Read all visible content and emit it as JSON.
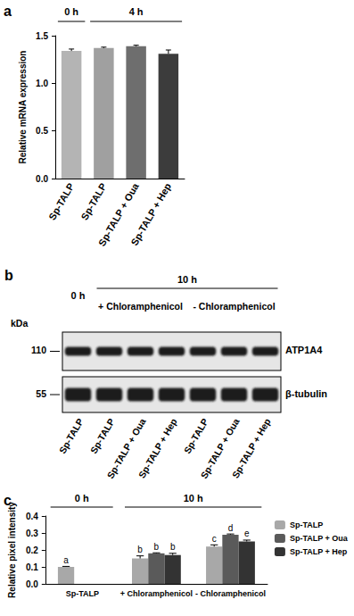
{
  "chart_data": [
    {
      "panel": "a",
      "type": "bar",
      "categories": [
        "Sp-TALP",
        "Sp-TALP",
        "Sp-TALP + Oua",
        "Sp-TALP + Hep"
      ],
      "values": [
        1.34,
        1.37,
        1.39,
        1.31
      ],
      "errors": [
        0.02,
        0.01,
        0.01,
        0.04
      ],
      "colors": [
        "#b4b4b4",
        "#a0a0a0",
        "#6e6e6e",
        "#3c3c3c"
      ],
      "y_label": "Relative mRNA expression",
      "ylim": [
        0,
        1.5
      ],
      "yticks": [
        {
          "value": 0,
          "label": "0.0"
        },
        {
          "value": 0.5,
          "label": "0.5"
        },
        {
          "value": 1,
          "label": "1.0"
        },
        {
          "value": 1.5,
          "label": "1.5"
        }
      ],
      "brackets": [
        {
          "label": "0 h",
          "from": 0,
          "to": 0
        },
        {
          "label": "4 h",
          "from": 1,
          "to": 3
        }
      ],
      "grid": false
    },
    {
      "panel": "c",
      "type": "bar",
      "categories": [
        "Sp-TALP",
        "+ Chloramphenicol",
        "- Chloramphenicol"
      ],
      "series": [
        {
          "name": "Sp-TALP",
          "color": "#a8a8a8",
          "values": [
            0.1,
            0.15,
            0.22
          ],
          "errors": [
            0.003,
            0.015,
            0.01
          ],
          "letters": [
            "a",
            "b",
            "c"
          ]
        },
        {
          "name": "Sp-TALP + Oua",
          "color": "#5a5a5a",
          "values": [
            null,
            0.18,
            0.29
          ],
          "errors": [
            null,
            0.003,
            0.004
          ],
          "letters": [
            null,
            "b",
            "d"
          ]
        },
        {
          "name": "Sp-TALP + Hep",
          "color": "#333333",
          "values": [
            null,
            0.17,
            0.25
          ],
          "errors": [
            null,
            0.01,
            0.008
          ],
          "letters": [
            null,
            "b",
            "e"
          ]
        }
      ],
      "y_label": "Relative pixel intensity",
      "ylim": [
        0,
        0.4
      ],
      "yticks": [
        {
          "value": 0,
          "label": "0.0"
        },
        {
          "value": 0.1,
          "label": "0.1"
        },
        {
          "value": 0.2,
          "label": "0.2"
        },
        {
          "value": 0.3,
          "label": "0.3"
        },
        {
          "value": 0.4,
          "label": "0.4"
        }
      ],
      "brackets": [
        {
          "label": "0 h",
          "from": 0,
          "to": 0
        },
        {
          "label": "10 h",
          "from": 1,
          "to": 2
        }
      ],
      "legend": "right",
      "grid": false
    }
  ],
  "blot": {
    "panel": "b",
    "unit": "kDa",
    "time_labels": [
      {
        "label": "0 h",
        "from": 0,
        "to": 0
      },
      {
        "label": "10 h",
        "from": 1,
        "to": 6
      }
    ],
    "condition_labels": [
      {
        "label": "+ Chloramphenicol",
        "from": 1,
        "to": 3
      },
      {
        "label": "- Chloramphenicol",
        "from": 4,
        "to": 6
      }
    ],
    "lanes": [
      "Sp-TALP",
      "Sp-TALP",
      "Sp-TALP + Oua",
      "Sp-TALP + Hep",
      "Sp-TALP",
      "Sp-TALP + Oua",
      "Sp-TALP + Hep"
    ],
    "rows": [
      {
        "label": "ATP1A4",
        "kda": 110
      },
      {
        "label": "β-tubulin",
        "kda": 55
      }
    ]
  }
}
